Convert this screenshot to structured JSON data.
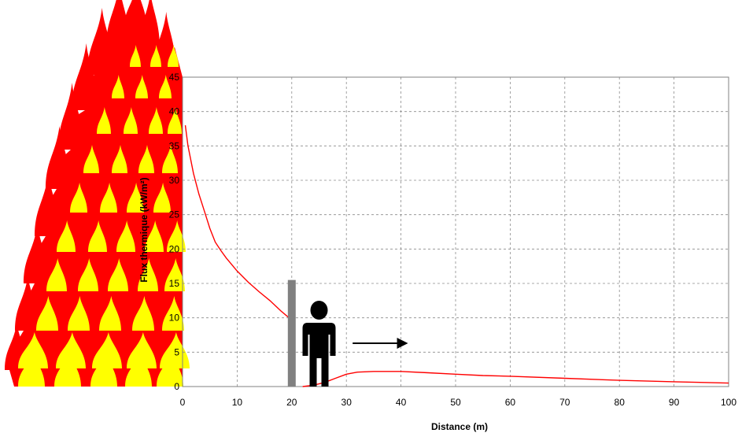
{
  "chart_data": {
    "type": "line",
    "title": "",
    "xlabel": "Distance (m)",
    "ylabel": "Flux thermique (kW/m²)",
    "xlim": [
      0,
      100
    ],
    "ylim": [
      0,
      45
    ],
    "xticks": [
      0,
      10,
      20,
      30,
      40,
      50,
      60,
      70,
      80,
      90,
      100
    ],
    "yticks": [
      0,
      5,
      10,
      15,
      20,
      25,
      30,
      35,
      40,
      45
    ],
    "grid": true,
    "legend": "none",
    "series": [
      {
        "color": "#ff0000",
        "points": [
          [
            0.5,
            38
          ],
          [
            1,
            35
          ],
          [
            2,
            31
          ],
          [
            3,
            28
          ],
          [
            4,
            25.5
          ],
          [
            5,
            23
          ],
          [
            6,
            21
          ],
          [
            7,
            19.8
          ],
          [
            8,
            18.7
          ],
          [
            10,
            16.8
          ],
          [
            12,
            15.2
          ],
          [
            14,
            13.8
          ],
          [
            16,
            12.5
          ],
          [
            18,
            11
          ],
          [
            19.5,
            10
          ],
          [
            20.5,
            9.5
          ]
        ]
      },
      {
        "color": "#ff0000",
        "points": [
          [
            22,
            0
          ],
          [
            24,
            0.2
          ],
          [
            26,
            0.6
          ],
          [
            28,
            1.2
          ],
          [
            30,
            1.8
          ],
          [
            32,
            2.1
          ],
          [
            35,
            2.2
          ],
          [
            40,
            2.2
          ],
          [
            45,
            2.0
          ],
          [
            50,
            1.8
          ],
          [
            55,
            1.6
          ],
          [
            60,
            1.5
          ],
          [
            70,
            1.2
          ],
          [
            80,
            0.9
          ],
          [
            90,
            0.7
          ],
          [
            100,
            0.5
          ]
        ]
      }
    ],
    "annotations": {
      "wall": {
        "x": 20,
        "top": 15.5,
        "color": "#808080"
      },
      "person": {
        "x": 25,
        "icon": "person-icon",
        "color": "#000000"
      },
      "arrow": {
        "from_x": 30,
        "to_x": 41,
        "y": 6.3,
        "icon": "arrow-right-icon"
      },
      "fire": {
        "icon": "flame-wall-icon",
        "colors": [
          "#ff0000",
          "#ffff00"
        ]
      }
    }
  }
}
